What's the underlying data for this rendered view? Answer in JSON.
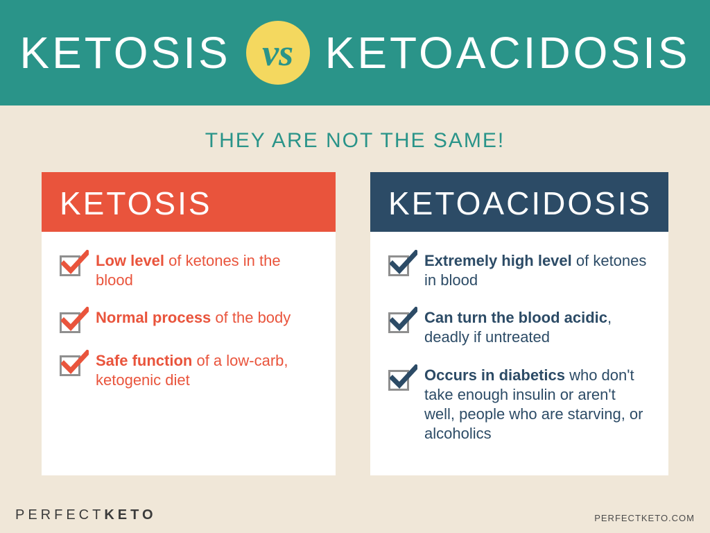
{
  "colors": {
    "header_band": "#2a9489",
    "page_bg": "#f0e7d8",
    "vs_badge_bg": "#f4d85f",
    "vs_text": "#2a9489",
    "subtitle": "#2a9489",
    "card_left_header_bg": "#e9543c",
    "card_left_text": "#e9543c",
    "card_right_header_bg": "#2c4b66",
    "card_right_text": "#2c4b66",
    "check_box_border": "#8f8f8f",
    "footer_text": "#3b3b3b"
  },
  "header": {
    "left": "KETOSIS",
    "vs": "vs",
    "right": "KETOACIDOSIS"
  },
  "subtitle": "THEY ARE NOT THE SAME!",
  "cards": {
    "left": {
      "title": "KETOSIS",
      "items": [
        {
          "bold": "Low level",
          "rest": " of ketones in the blood"
        },
        {
          "bold": "Normal process",
          "rest": " of the body"
        },
        {
          "bold": "Safe function",
          "rest": " of a low-carb, ketogenic diet"
        }
      ]
    },
    "right": {
      "title": "KETOACIDOSIS",
      "items": [
        {
          "bold": "Extremely high level",
          "rest": " of ketones in blood"
        },
        {
          "bold": "Can turn the blood acidic",
          "rest": ", deadly if untreated"
        },
        {
          "bold": "Occurs in diabetics",
          "rest": " who don't take enough insulin or aren't well, people who are starving, or alcoholics"
        }
      ]
    }
  },
  "footer": {
    "brand_thin": "PERFECT",
    "brand_bold": "KETO",
    "url": "PERFECTKETO.COM"
  }
}
